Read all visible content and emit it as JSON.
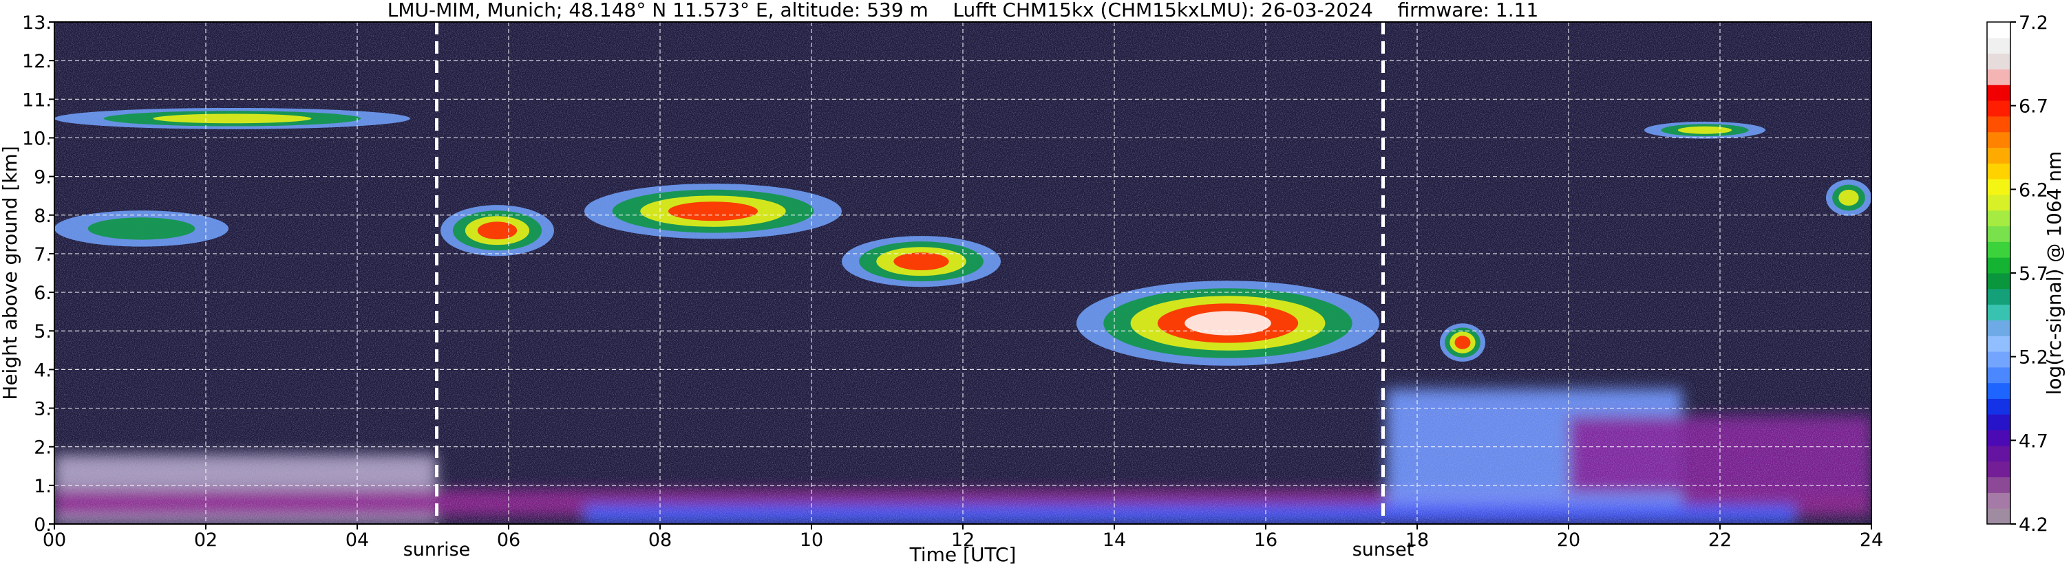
{
  "chart_data": {
    "type": "heatmap",
    "title": "LMU-MIM, Munich; 48.148° N 11.573° E, altitude: 539 m    Lufft CHM15kx (CHM15kxLMU): 26-03-2024    firmware: 1.11",
    "xlabel": "Time [UTC]",
    "ylabel": "Height above ground [km]",
    "xlim": [
      0,
      24
    ],
    "ylim": [
      0,
      13
    ],
    "x_ticks": [
      "00",
      "02",
      "04",
      "06",
      "08",
      "10",
      "12",
      "14",
      "16",
      "18",
      "20",
      "22",
      "24"
    ],
    "y_ticks": [
      "0.",
      "1.",
      "2.",
      "3.",
      "4.",
      "5.",
      "6.",
      "7.",
      "8.",
      "9.",
      "10.",
      "11.",
      "12.",
      "13."
    ],
    "grid": true,
    "colorbar": {
      "label": "log(rc-signal) @ 1064 nm",
      "range": [
        4.2,
        7.2
      ],
      "ticks": [
        "4.2",
        "4.7",
        "5.2",
        "5.7",
        "6.2",
        "6.7",
        "7.2"
      ],
      "colors": [
        "#a08ca0",
        "#a67aa6",
        "#8c4a96",
        "#731e96",
        "#6414a0",
        "#4b0ab4",
        "#2814c8",
        "#1432e6",
        "#1e64ff",
        "#4b87ff",
        "#73a5ff",
        "#91beff",
        "#6eaae6",
        "#37c3af",
        "#14a078",
        "#0a963c",
        "#14b432",
        "#3cd23c",
        "#78e14b",
        "#a5eb41",
        "#d7f028",
        "#f5f514",
        "#ffd200",
        "#ffaa00",
        "#ff8200",
        "#ff5000",
        "#ff1e00",
        "#f00000",
        "#f5b4b4",
        "#e6dcdc",
        "#f0f0f0",
        "#ffffff"
      ]
    },
    "annotations": [
      {
        "text": "sunrise",
        "x": 5.05
      },
      {
        "text": "sunset",
        "x": 17.55
      }
    ],
    "background": "#1e1a3c",
    "layers": [
      {
        "x": [
          0,
          5.05
        ],
        "y": [
          0,
          1.8
        ],
        "color": "#b4a5c8",
        "intensity": 4.3
      },
      {
        "x": [
          0,
          24
        ],
        "y": [
          0.2,
          0.9
        ],
        "color": "#8c1e8c",
        "intensity": 4.5
      },
      {
        "x": [
          7,
          23
        ],
        "y": [
          0,
          0.5
        ],
        "color": "#3c5aff",
        "intensity": 4.9
      },
      {
        "x": [
          17.6,
          21.5
        ],
        "y": [
          0.5,
          3.5
        ],
        "color": "#6e96ff",
        "intensity": 5.0
      },
      {
        "x": [
          20,
          24
        ],
        "y": [
          0.8,
          2.8
        ],
        "color": "#821e96",
        "intensity": 4.6
      }
    ],
    "clouds": [
      {
        "x": [
          0,
          4.7
        ],
        "y": [
          10.0,
          11.0
        ],
        "peak": 6.3
      },
      {
        "x": [
          0,
          2.3
        ],
        "y": [
          6.8,
          8.5
        ],
        "peak": 5.9
      },
      {
        "x": [
          5.1,
          6.6
        ],
        "y": [
          6.4,
          8.8
        ],
        "peak": 6.8
      },
      {
        "x": [
          7.0,
          10.4
        ],
        "y": [
          6.8,
          9.4
        ],
        "peak": 6.9
      },
      {
        "x": [
          10.4,
          12.5
        ],
        "y": [
          5.6,
          8.0
        ],
        "peak": 6.8
      },
      {
        "x": [
          13.5,
          17.5
        ],
        "y": [
          3.2,
          7.2
        ],
        "peak": 7.2
      },
      {
        "x": [
          18.3,
          18.9
        ],
        "y": [
          3.8,
          5.6
        ],
        "peak": 6.9
      },
      {
        "x": [
          21.0,
          22.6
        ],
        "y": [
          9.8,
          10.6
        ],
        "peak": 6.3
      },
      {
        "x": [
          23.4,
          24
        ],
        "y": [
          7.6,
          9.3
        ],
        "peak": 6.2
      }
    ]
  }
}
